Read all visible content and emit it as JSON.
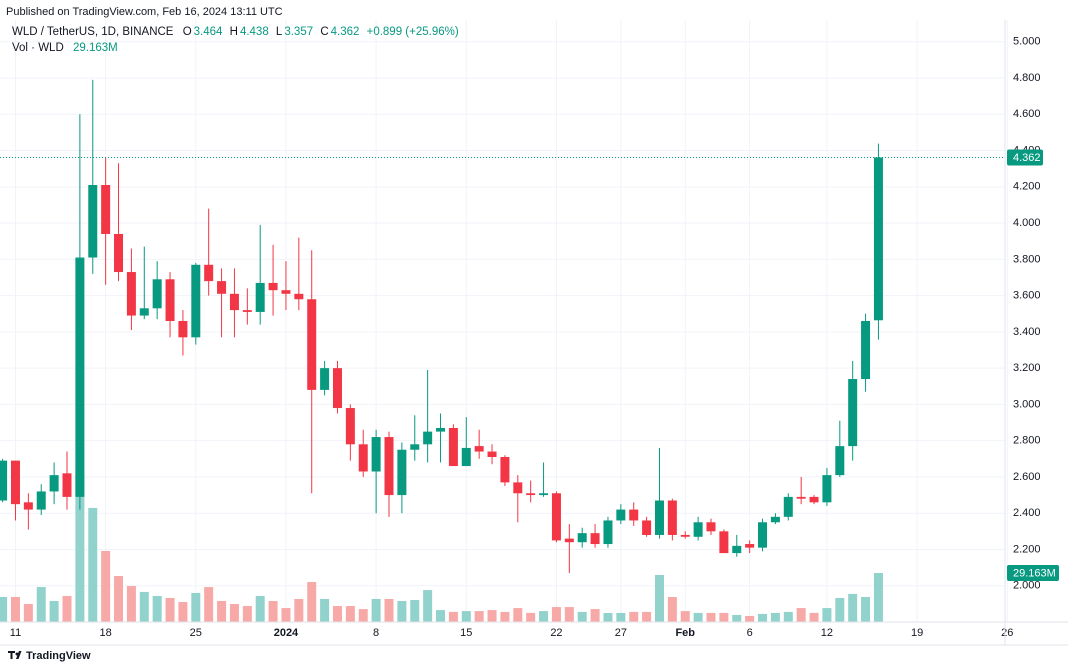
{
  "chart_data": {
    "type": "candlestick",
    "header": "Published on TradingView.com, Feb 16, 2024 13:11 UTC",
    "title": "WLD / TetherUS, 1D, BINANCE",
    "ohlc_labels": [
      "O",
      "H",
      "L",
      "C"
    ],
    "change": "+0.899 (+25.96%)",
    "volume_title": "Vol · WLD",
    "footer": "TradingView",
    "categories": [
      null,
      "11",
      null,
      null,
      null,
      null,
      null,
      null,
      "18",
      null,
      null,
      null,
      null,
      null,
      null,
      "25",
      null,
      null,
      null,
      null,
      null,
      null,
      "2024",
      null,
      null,
      null,
      null,
      null,
      null,
      "8",
      null,
      null,
      null,
      null,
      null,
      null,
      "15",
      null,
      null,
      null,
      null,
      null,
      null,
      "22",
      null,
      null,
      null,
      null,
      "27",
      null,
      null,
      null,
      null,
      "Feb",
      null,
      null,
      null,
      null,
      "6",
      null,
      null,
      null,
      null,
      null,
      "12",
      null,
      null,
      null,
      null,
      null,
      null,
      "19",
      null,
      null,
      null,
      null,
      null,
      null,
      "26"
    ],
    "open": [
      2.47,
      2.69,
      2.46,
      2.42,
      2.52,
      2.62,
      2.49,
      3.81,
      4.21,
      3.94,
      3.73,
      3.49,
      3.53,
      3.69,
      3.46,
      3.37,
      3.77,
      3.68,
      3.61,
      3.52,
      3.51,
      3.67,
      3.63,
      3.61,
      3.58,
      3.08,
      3.2,
      2.98,
      2.78,
      2.63,
      2.82,
      2.5,
      2.75,
      2.78,
      2.85,
      2.87,
      2.66,
      2.77,
      2.74,
      2.71,
      2.57,
      2.51,
      2.5,
      2.51,
      2.26,
      2.24,
      2.29,
      2.23,
      2.36,
      2.42,
      2.36,
      2.28,
      2.47,
      2.28,
      2.27,
      2.35,
      2.3,
      2.18,
      2.23,
      2.21,
      2.35,
      2.38,
      2.49,
      2.49,
      2.46,
      2.61,
      2.77,
      3.14,
      3.464,
      null,
      null,
      null,
      null,
      null,
      null,
      null,
      null,
      null,
      null
    ],
    "high": [
      2.7,
      2.69,
      2.51,
      2.56,
      2.68,
      2.74,
      4.6,
      4.79,
      4.36,
      4.33,
      3.86,
      3.87,
      3.79,
      3.73,
      3.52,
      3.78,
      4.08,
      3.75,
      3.75,
      3.64,
      3.99,
      3.88,
      3.79,
      3.92,
      3.85,
      3.24,
      3.24,
      3.0,
      2.86,
      2.86,
      2.85,
      2.79,
      2.94,
      3.19,
      2.95,
      2.89,
      2.93,
      2.86,
      2.78,
      2.72,
      2.61,
      2.58,
      2.68,
      2.52,
      2.34,
      2.32,
      2.34,
      2.38,
      2.45,
      2.46,
      2.38,
      2.76,
      2.48,
      2.3,
      2.38,
      2.37,
      2.31,
      2.28,
      2.25,
      2.37,
      2.4,
      2.51,
      2.6,
      2.5,
      2.65,
      2.91,
      3.24,
      3.5,
      4.438,
      null,
      null,
      null,
      null,
      null,
      null,
      null,
      null,
      null,
      null
    ],
    "low": [
      2.46,
      2.36,
      2.31,
      2.39,
      2.45,
      2.42,
      2.42,
      3.72,
      3.66,
      3.68,
      3.41,
      3.47,
      3.47,
      3.37,
      3.27,
      3.33,
      3.6,
      3.37,
      3.37,
      3.44,
      3.44,
      3.49,
      3.52,
      3.52,
      2.51,
      3.05,
      2.95,
      2.69,
      2.6,
      2.4,
      2.38,
      2.4,
      2.69,
      2.68,
      2.68,
      2.66,
      2.66,
      2.7,
      2.67,
      2.55,
      2.35,
      2.46,
      2.49,
      2.24,
      2.07,
      2.21,
      2.21,
      2.21,
      2.34,
      2.33,
      2.27,
      2.26,
      2.25,
      2.26,
      2.25,
      2.28,
      2.18,
      2.16,
      2.18,
      2.19,
      2.34,
      2.36,
      2.45,
      2.45,
      2.44,
      2.6,
      2.69,
      3.07,
      3.357,
      null,
      null,
      null,
      null,
      null,
      null,
      null,
      null,
      null,
      null
    ],
    "close": [
      2.69,
      2.45,
      2.42,
      2.52,
      2.61,
      2.49,
      3.81,
      4.21,
      3.94,
      3.73,
      3.49,
      3.53,
      3.69,
      3.46,
      3.37,
      3.77,
      3.68,
      3.61,
      3.52,
      3.51,
      3.67,
      3.63,
      3.61,
      3.58,
      3.08,
      3.2,
      2.98,
      2.78,
      2.63,
      2.82,
      2.5,
      2.75,
      2.78,
      2.85,
      2.87,
      2.66,
      2.76,
      2.74,
      2.71,
      2.57,
      2.51,
      2.5,
      2.51,
      2.25,
      2.24,
      2.29,
      2.23,
      2.36,
      2.42,
      2.36,
      2.28,
      2.47,
      2.28,
      2.27,
      2.35,
      2.3,
      2.18,
      2.22,
      2.21,
      2.35,
      2.38,
      2.49,
      2.48,
      2.46,
      2.61,
      2.77,
      3.14,
      3.46,
      4.362,
      null,
      null,
      null,
      null,
      null,
      null,
      null,
      null,
      null,
      null
    ],
    "volume": {
      "values": [
        14.9,
        14.9,
        10.7,
        20.8,
        12.5,
        15.5,
        90.4,
        67.9,
        42.3,
        27.4,
        21.4,
        17.9,
        15.5,
        14.3,
        11.9,
        17.3,
        20.8,
        12.5,
        10.7,
        9.5,
        15.5,
        12.5,
        8.3,
        13.7,
        23.8,
        13.7,
        9.5,
        9.5,
        7.7,
        13.7,
        13.7,
        12.5,
        13.1,
        19.0,
        7.1,
        6.0,
        6.5,
        6.5,
        7.1,
        6.0,
        8.3,
        5.4,
        6.5,
        8.9,
        8.9,
        6.0,
        7.7,
        5.4,
        5.4,
        6.0,
        6.0,
        28.0,
        14.9,
        6.5,
        5.4,
        5.4,
        5.4,
        4.2,
        3.6,
        4.8,
        5.4,
        6.0,
        8.3,
        5.4,
        8.3,
        14.3,
        16.7,
        14.9,
        29.163,
        null,
        null,
        null,
        null,
        null,
        null,
        null,
        null,
        null,
        null
      ],
      "value_labels": [
        null,
        null,
        null,
        null,
        null,
        null,
        null,
        null,
        null,
        null,
        null,
        null,
        null,
        null,
        null,
        null,
        null,
        null,
        null,
        null,
        null,
        null,
        null,
        null,
        null,
        null,
        null,
        null,
        null,
        null,
        null,
        null,
        null,
        null,
        null,
        null,
        null,
        null,
        null,
        null,
        null,
        null,
        null,
        null,
        null,
        null,
        null,
        null,
        null,
        null,
        null,
        null,
        null,
        null,
        null,
        null,
        null,
        null,
        null,
        null,
        null,
        null,
        null,
        null,
        null,
        null,
        null,
        null,
        "29.163M",
        null,
        null,
        null,
        null,
        null,
        null,
        null,
        null,
        null,
        null
      ]
    },
    "up_color": "#089981",
    "down_color": "#f23645",
    "volume_up_color": "#92d2cc",
    "volume_down_color": "#f7a9a7",
    "ylim": [
      1.8,
      5.12
    ],
    "yticks": [
      {
        "value": 2,
        "label": "2.000"
      },
      {
        "value": 2.2,
        "label": "2.200"
      },
      {
        "value": 2.4,
        "label": "2.400"
      },
      {
        "value": 2.6,
        "label": "2.600"
      },
      {
        "value": 2.8,
        "label": "2.800"
      },
      {
        "value": 3,
        "label": "3.000"
      },
      {
        "value": 3.2,
        "label": "3.200"
      },
      {
        "value": 3.4,
        "label": "3.400"
      },
      {
        "value": 3.6,
        "label": "3.600"
      },
      {
        "value": 3.8,
        "label": "3.800"
      },
      {
        "value": 4,
        "label": "4.000"
      },
      {
        "value": 4.2,
        "label": "4.200"
      },
      {
        "value": 4.4,
        "label": "4.400"
      },
      {
        "value": 4.6,
        "label": "4.600"
      },
      {
        "value": 4.8,
        "label": "4.800"
      },
      {
        "value": 5,
        "label": "5.000"
      }
    ],
    "vol_ylim": [
      0,
      100
    ],
    "grid": true
  }
}
